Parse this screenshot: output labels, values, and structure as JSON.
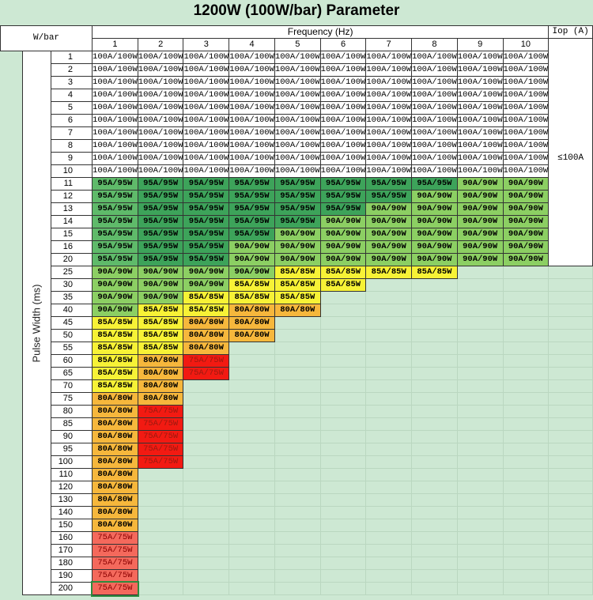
{
  "title": "1200W (100W/bar) Parameter",
  "header": {
    "corner_label": "W/bar",
    "frequency_label": "Frequency (Hz)",
    "frequencies": [
      "1",
      "2",
      "3",
      "4",
      "5",
      "6",
      "7",
      "8",
      "9",
      "10"
    ],
    "iop_label": "Iop (A)",
    "pulse_width_label": "Pulse Width (ms)",
    "iop_value": "≤100A"
  },
  "colors": {
    "100A/100W": "#ffffff",
    "95A/95W": "#3da35a",
    "95A/95W_col1": "#5fba6a",
    "90A/90W": "#8ccf63",
    "85A/85W": "#f7f236",
    "80A/80W": "#f6b73c",
    "75A/75W": "#f21a12",
    "75A/75W_col1": "#f4695c",
    "background": "#cde8d3"
  },
  "rows": [
    {
      "label": "1",
      "cells": [
        "100A/100W",
        "100A/100W",
        "100A/100W",
        "100A/100W",
        "100A/100W",
        "100A/100W",
        "100A/100W",
        "100A/100W",
        "100A/100W",
        "100A/100W"
      ]
    },
    {
      "label": "2",
      "cells": [
        "100A/100W",
        "100A/100W",
        "100A/100W",
        "100A/100W",
        "100A/100W",
        "100A/100W",
        "100A/100W",
        "100A/100W",
        "100A/100W",
        "100A/100W"
      ]
    },
    {
      "label": "3",
      "cells": [
        "100A/100W",
        "100A/100W",
        "100A/100W",
        "100A/100W",
        "100A/100W",
        "100A/100W",
        "100A/100W",
        "100A/100W",
        "100A/100W",
        "100A/100W"
      ]
    },
    {
      "label": "4",
      "cells": [
        "100A/100W",
        "100A/100W",
        "100A/100W",
        "100A/100W",
        "100A/100W",
        "100A/100W",
        "100A/100W",
        "100A/100W",
        "100A/100W",
        "100A/100W"
      ]
    },
    {
      "label": "5",
      "cells": [
        "100A/100W",
        "100A/100W",
        "100A/100W",
        "100A/100W",
        "100A/100W",
        "100A/100W",
        "100A/100W",
        "100A/100W",
        "100A/100W",
        "100A/100W"
      ]
    },
    {
      "label": "6",
      "cells": [
        "100A/100W",
        "100A/100W",
        "100A/100W",
        "100A/100W",
        "100A/100W",
        "100A/100W",
        "100A/100W",
        "100A/100W",
        "100A/100W",
        "100A/100W"
      ]
    },
    {
      "label": "7",
      "cells": [
        "100A/100W",
        "100A/100W",
        "100A/100W",
        "100A/100W",
        "100A/100W",
        "100A/100W",
        "100A/100W",
        "100A/100W",
        "100A/100W",
        "100A/100W"
      ]
    },
    {
      "label": "8",
      "cells": [
        "100A/100W",
        "100A/100W",
        "100A/100W",
        "100A/100W",
        "100A/100W",
        "100A/100W",
        "100A/100W",
        "100A/100W",
        "100A/100W",
        "100A/100W"
      ]
    },
    {
      "label": "9",
      "cells": [
        "100A/100W",
        "100A/100W",
        "100A/100W",
        "100A/100W",
        "100A/100W",
        "100A/100W",
        "100A/100W",
        "100A/100W",
        "100A/100W",
        "100A/100W"
      ]
    },
    {
      "label": "10",
      "cells": [
        "100A/100W",
        "100A/100W",
        "100A/100W",
        "100A/100W",
        "100A/100W",
        "100A/100W",
        "100A/100W",
        "100A/100W",
        "100A/100W",
        "100A/100W"
      ]
    },
    {
      "label": "11",
      "cells": [
        "95A/95W",
        "95A/95W",
        "95A/95W",
        "95A/95W",
        "95A/95W",
        "95A/95W",
        "95A/95W",
        "95A/95W",
        "90A/90W",
        "90A/90W"
      ]
    },
    {
      "label": "12",
      "cells": [
        "95A/95W",
        "95A/95W",
        "95A/95W",
        "95A/95W",
        "95A/95W",
        "95A/95W",
        "95A/95W",
        "90A/90W",
        "90A/90W",
        "90A/90W"
      ]
    },
    {
      "label": "13",
      "cells": [
        "95A/95W",
        "95A/95W",
        "95A/95W",
        "95A/95W",
        "95A/95W",
        "95A/95W",
        "90A/90W",
        "90A/90W",
        "90A/90W",
        "90A/90W"
      ]
    },
    {
      "label": "14",
      "cells": [
        "95A/95W",
        "95A/95W",
        "95A/95W",
        "95A/95W",
        "95A/95W",
        "90A/90W",
        "90A/90W",
        "90A/90W",
        "90A/90W",
        "90A/90W"
      ]
    },
    {
      "label": "15",
      "cells": [
        "95A/95W",
        "95A/95W",
        "95A/95W",
        "95A/95W",
        "90A/90W",
        "90A/90W",
        "90A/90W",
        "90A/90W",
        "90A/90W",
        "90A/90W"
      ]
    },
    {
      "label": "16",
      "cells": [
        "95A/95W",
        "95A/95W",
        "95A/95W",
        "90A/90W",
        "90A/90W",
        "90A/90W",
        "90A/90W",
        "90A/90W",
        "90A/90W",
        "90A/90W"
      ]
    },
    {
      "label": "20",
      "cells": [
        "95A/95W",
        "95A/95W",
        "95A/95W",
        "90A/90W",
        "90A/90W",
        "90A/90W",
        "90A/90W",
        "90A/90W",
        "90A/90W",
        "90A/90W"
      ]
    },
    {
      "label": "25",
      "cells": [
        "90A/90W",
        "90A/90W",
        "90A/90W",
        "90A/90W",
        "85A/85W",
        "85A/85W",
        "85A/85W",
        "85A/85W"
      ]
    },
    {
      "label": "30",
      "cells": [
        "90A/90W",
        "90A/90W",
        "90A/90W",
        "85A/85W",
        "85A/85W",
        "85A/85W"
      ]
    },
    {
      "label": "35",
      "cells": [
        "90A/90W",
        "90A/90W",
        "85A/85W",
        "85A/85W",
        "85A/85W"
      ]
    },
    {
      "label": "40",
      "cells": [
        "90A/90W",
        "85A/85W",
        "85A/85W",
        "80A/80W",
        "80A/80W"
      ]
    },
    {
      "label": "45",
      "cells": [
        "85A/85W",
        "85A/85W",
        "80A/80W",
        "80A/80W"
      ]
    },
    {
      "label": "50",
      "cells": [
        "85A/85W",
        "85A/85W",
        "80A/80W",
        "80A/80W"
      ]
    },
    {
      "label": "55",
      "cells": [
        "85A/85W",
        "85A/85W",
        "80A/80W"
      ]
    },
    {
      "label": "60",
      "cells": [
        "85A/85W",
        "80A/80W",
        "75A/75W"
      ]
    },
    {
      "label": "65",
      "cells": [
        "85A/85W",
        "80A/80W",
        "75A/75W"
      ]
    },
    {
      "label": "70",
      "cells": [
        "85A/85W",
        "80A/80W"
      ]
    },
    {
      "label": "75",
      "cells": [
        "80A/80W",
        "80A/80W"
      ]
    },
    {
      "label": "80",
      "cells": [
        "80A/80W",
        "75A/75W"
      ]
    },
    {
      "label": "85",
      "cells": [
        "80A/80W",
        "75A/75W"
      ]
    },
    {
      "label": "90",
      "cells": [
        "80A/80W",
        "75A/75W"
      ]
    },
    {
      "label": "95",
      "cells": [
        "80A/80W",
        "75A/75W"
      ]
    },
    {
      "label": "100",
      "cells": [
        "80A/80W",
        "75A/75W"
      ]
    },
    {
      "label": "110",
      "cells": [
        "80A/80W"
      ]
    },
    {
      "label": "120",
      "cells": [
        "80A/80W"
      ]
    },
    {
      "label": "130",
      "cells": [
        "80A/80W"
      ]
    },
    {
      "label": "140",
      "cells": [
        "80A/80W"
      ]
    },
    {
      "label": "150",
      "cells": [
        "80A/80W"
      ]
    },
    {
      "label": "160",
      "cells": [
        "75A/75W"
      ]
    },
    {
      "label": "170",
      "cells": [
        "75A/75W"
      ]
    },
    {
      "label": "180",
      "cells": [
        "75A/75W"
      ]
    },
    {
      "label": "190",
      "cells": [
        "75A/75W"
      ]
    },
    {
      "label": "200",
      "cells": [
        "75A/75W"
      ]
    }
  ]
}
